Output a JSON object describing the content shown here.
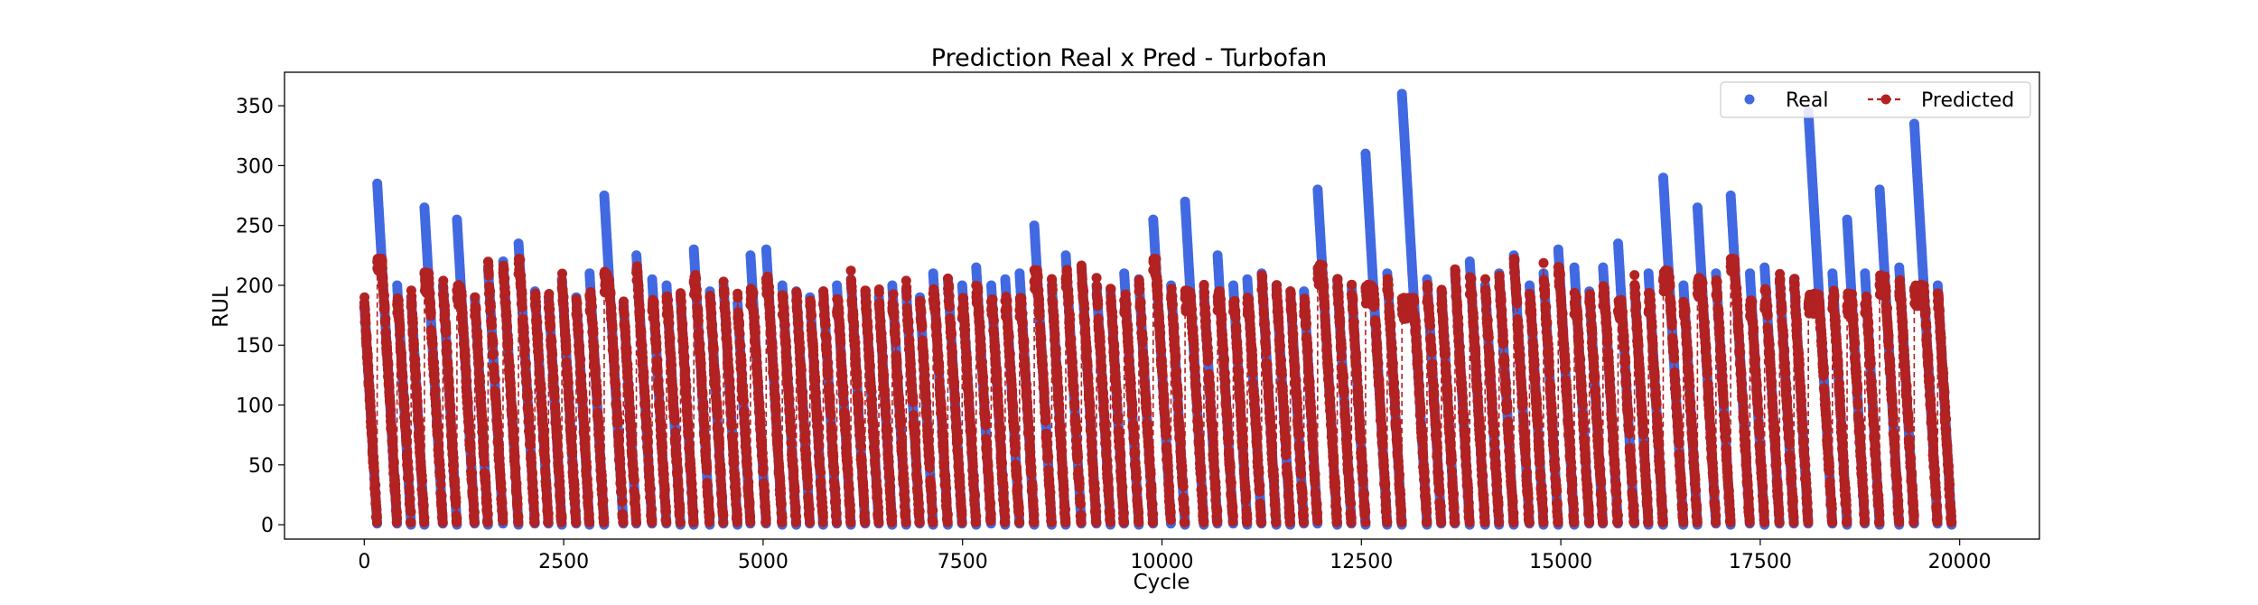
{
  "chart_data": {
    "type": "line",
    "title": "Prediction Real x Pred - Turbofan",
    "xlabel": "Cycle",
    "ylabel": "RUL",
    "xlim": [
      -1000,
      21000
    ],
    "ylim": [
      -12,
      378
    ],
    "xticks": [
      0,
      2500,
      5000,
      7500,
      10000,
      12500,
      15000,
      17500,
      20000
    ],
    "yticks": [
      0,
      50,
      100,
      150,
      200,
      250,
      300,
      350
    ],
    "grid": false,
    "legend_position": "top-right",
    "series": [
      {
        "name": "Real",
        "style": "markers",
        "color": "#4169e1",
        "description": "Sawtooth run-to-failure RUL, each engine descending linearly to 0",
        "engine_peaks": [
          185,
          285,
          200,
          190,
          265,
          200,
          255,
          190,
          215,
          220,
          235,
          195,
          190,
          205,
          190,
          210,
          275,
          185,
          225,
          205,
          200,
          190,
          230,
          195,
          200,
          185,
          225,
          230,
          200,
          195,
          190,
          195,
          200,
          205,
          195,
          190,
          200,
          195,
          190,
          210,
          205,
          200,
          215,
          200,
          205,
          210,
          250,
          200,
          225,
          215,
          200,
          195,
          210,
          205,
          255,
          200,
          270,
          195,
          225,
          200,
          205,
          210,
          200,
          195,
          195,
          280,
          205,
          200,
          310,
          210,
          360,
          205,
          195,
          210,
          220,
          200,
          210,
          225,
          200,
          210,
          230,
          215,
          195,
          215,
          235,
          200,
          210,
          290,
          200,
          265,
          210,
          275,
          210,
          215,
          205,
          205,
          345,
          210,
          255,
          210,
          280,
          215,
          335,
          200
        ]
      },
      {
        "name": "Predicted",
        "style": "dashed-line-markers",
        "color": "#b22222",
        "description": "Model RUL predictions per cycle, capped near 210-220, descending to ~0-10 at each engine end"
      }
    ]
  }
}
